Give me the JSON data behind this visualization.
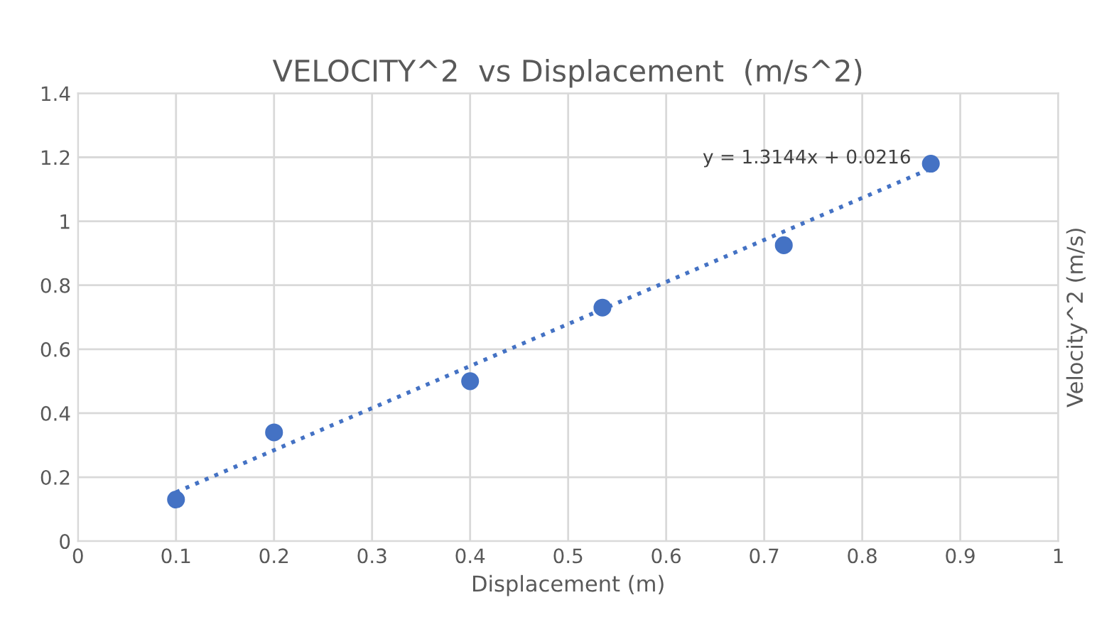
{
  "chart_data": {
    "type": "scatter",
    "title": "VELOCITY^2  vs Displacement  (m/s^2)",
    "xlabel": "Displacement (m)",
    "ylabel": "Velocity^2 (m/s)",
    "x": [
      0.1,
      0.2,
      0.4,
      0.535,
      0.72,
      0.87
    ],
    "series": [
      {
        "color": "#4472c4",
        "values": [
          0.13,
          0.34,
          0.5,
          0.73,
          0.925,
          1.18
        ],
        "marker": "circle"
      },
      {
        "type": "line",
        "color": "#4472c4",
        "x": [
          0.1,
          0.87
        ],
        "values": [
          0.153,
          1.165
        ],
        "line_style": "dotted",
        "marker": "none"
      }
    ],
    "annotations": [
      "y = 1.3144x + 0.0216"
    ],
    "xlim": [
      0,
      1
    ],
    "xticks": [
      0,
      0.1,
      0.2,
      0.3,
      0.4,
      0.5,
      0.6,
      0.7,
      0.8,
      0.9,
      1
    ],
    "ylim": [
      0,
      1.4
    ],
    "yticks": [
      0,
      0.2,
      0.4,
      0.6,
      0.8,
      1,
      1.2,
      1.4
    ],
    "grid": true,
    "legend": false
  }
}
